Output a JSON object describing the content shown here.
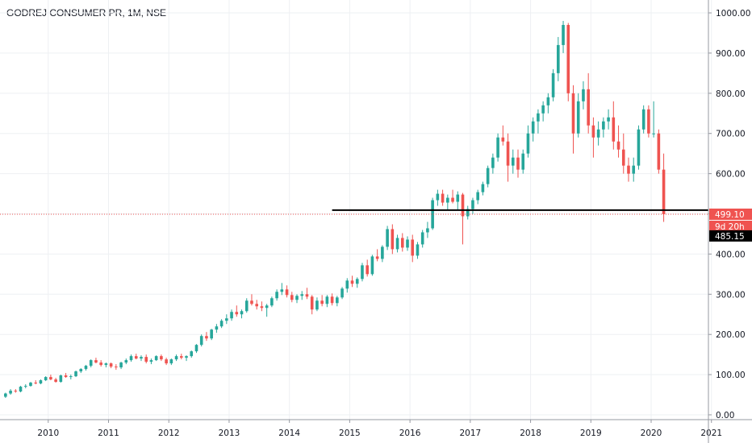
{
  "header": {
    "symbol_title": "GODREJ CONSUMER PR, 1M, NSE"
  },
  "colors": {
    "up": "#26a69a",
    "down": "#ef5350",
    "grid": "#eef0f3",
    "axis_text": "#131722",
    "last_price_bg": "#ef5350",
    "level_line": "#000000",
    "level_bg": "#000000"
  },
  "badges": {
    "last_price": "499.10",
    "countdown": "9d 20h",
    "level_price": "485.15"
  },
  "chart_data": {
    "type": "candlestick",
    "title": "GODREJ CONSUMER PR, 1M, NSE",
    "interval": "1M",
    "exchange": "NSE",
    "price_axis": {
      "range": [
        -10,
        1020
      ],
      "ticks": [
        0,
        100,
        200,
        300,
        400,
        500,
        600,
        700,
        800,
        900,
        1000
      ],
      "tick_labels": [
        "0.00",
        "100.00",
        "200.00",
        "300.00",
        "400.00",
        "500.00",
        "600.00",
        "700.00",
        "800.00",
        "900.00",
        "1000.00"
      ]
    },
    "time_axis": {
      "start_year": 2009.2,
      "end_year": 2020.95,
      "ticks": [
        "2010",
        "2011",
        "2012",
        "2013",
        "2014",
        "2015",
        "2016",
        "2017",
        "2018",
        "2019",
        "2020",
        "2021"
      ]
    },
    "grid": true,
    "horizontal_level": {
      "price": 485.15,
      "start": "2014-09"
    },
    "last_price": 499.1,
    "candles": [
      [
        "2009-04",
        45,
        55,
        42,
        53
      ],
      [
        "2009-05",
        53,
        64,
        50,
        60
      ],
      [
        "2009-06",
        60,
        64,
        55,
        58
      ],
      [
        "2009-07",
        58,
        72,
        56,
        70
      ],
      [
        "2009-08",
        70,
        76,
        66,
        72
      ],
      [
        "2009-09",
        72,
        82,
        70,
        80
      ],
      [
        "2009-10",
        80,
        86,
        76,
        78
      ],
      [
        "2009-11",
        78,
        88,
        76,
        86
      ],
      [
        "2009-12",
        86,
        96,
        84,
        94
      ],
      [
        "2010-01",
        94,
        100,
        86,
        88
      ],
      [
        "2010-02",
        88,
        92,
        80,
        82
      ],
      [
        "2010-03",
        82,
        100,
        80,
        98
      ],
      [
        "2010-04",
        98,
        104,
        92,
        94
      ],
      [
        "2010-05",
        94,
        100,
        88,
        96
      ],
      [
        "2010-06",
        96,
        110,
        94,
        108
      ],
      [
        "2010-07",
        108,
        116,
        104,
        114
      ],
      [
        "2010-08",
        114,
        124,
        110,
        122
      ],
      [
        "2010-09",
        122,
        138,
        118,
        136
      ],
      [
        "2010-10",
        136,
        142,
        128,
        130
      ],
      [
        "2010-11",
        130,
        136,
        120,
        124
      ],
      [
        "2010-12",
        124,
        130,
        118,
        128
      ],
      [
        "2011-01",
        128,
        130,
        116,
        120
      ],
      [
        "2011-02",
        120,
        126,
        112,
        118
      ],
      [
        "2011-03",
        118,
        132,
        114,
        130
      ],
      [
        "2011-04",
        130,
        140,
        126,
        136
      ],
      [
        "2011-05",
        136,
        150,
        132,
        146
      ],
      [
        "2011-06",
        146,
        152,
        138,
        140
      ],
      [
        "2011-07",
        140,
        148,
        134,
        144
      ],
      [
        "2011-08",
        144,
        150,
        128,
        132
      ],
      [
        "2011-09",
        132,
        140,
        126,
        136
      ],
      [
        "2011-10",
        136,
        148,
        134,
        146
      ],
      [
        "2011-11",
        146,
        150,
        134,
        138
      ],
      [
        "2011-12",
        138,
        142,
        124,
        128
      ],
      [
        "2012-01",
        128,
        140,
        124,
        138
      ],
      [
        "2012-02",
        138,
        150,
        134,
        146
      ],
      [
        "2012-03",
        146,
        152,
        138,
        142
      ],
      [
        "2012-04",
        142,
        148,
        134,
        146
      ],
      [
        "2012-05",
        146,
        160,
        142,
        158
      ],
      [
        "2012-06",
        158,
        176,
        154,
        174
      ],
      [
        "2012-07",
        174,
        200,
        170,
        196
      ],
      [
        "2012-08",
        196,
        206,
        184,
        190
      ],
      [
        "2012-09",
        190,
        214,
        186,
        212
      ],
      [
        "2012-10",
        212,
        226,
        204,
        220
      ],
      [
        "2012-11",
        220,
        238,
        216,
        234
      ],
      [
        "2012-12",
        234,
        250,
        226,
        240
      ],
      [
        "2013-01",
        240,
        262,
        234,
        256
      ],
      [
        "2013-02",
        256,
        272,
        244,
        250
      ],
      [
        "2013-03",
        250,
        262,
        240,
        258
      ],
      [
        "2013-04",
        258,
        290,
        254,
        284
      ],
      [
        "2013-05",
        284,
        300,
        272,
        276
      ],
      [
        "2013-06",
        276,
        286,
        262,
        270
      ],
      [
        "2013-07",
        270,
        282,
        258,
        266
      ],
      [
        "2013-08",
        266,
        276,
        244,
        272
      ],
      [
        "2013-09",
        272,
        294,
        268,
        290
      ],
      [
        "2013-10",
        290,
        312,
        284,
        306
      ],
      [
        "2013-11",
        306,
        328,
        298,
        312
      ],
      [
        "2013-12",
        312,
        322,
        292,
        298
      ],
      [
        "2014-01",
        298,
        306,
        280,
        286
      ],
      [
        "2014-02",
        286,
        300,
        278,
        296
      ],
      [
        "2014-03",
        296,
        308,
        286,
        300
      ],
      [
        "2014-04",
        300,
        316,
        288,
        294
      ],
      [
        "2014-05",
        294,
        298,
        250,
        262
      ],
      [
        "2014-06",
        262,
        292,
        258,
        284
      ],
      [
        "2014-07",
        284,
        298,
        270,
        276
      ],
      [
        "2014-08",
        276,
        298,
        268,
        294
      ],
      [
        "2014-09",
        294,
        302,
        272,
        278
      ],
      [
        "2014-10",
        278,
        296,
        270,
        292
      ],
      [
        "2014-11",
        292,
        318,
        288,
        314
      ],
      [
        "2014-12",
        314,
        340,
        304,
        334
      ],
      [
        "2015-01",
        334,
        346,
        318,
        326
      ],
      [
        "2015-02",
        326,
        342,
        316,
        338
      ],
      [
        "2015-03",
        338,
        378,
        332,
        372
      ],
      [
        "2015-04",
        372,
        386,
        344,
        350
      ],
      [
        "2015-05",
        350,
        398,
        346,
        394
      ],
      [
        "2015-06",
        394,
        412,
        382,
        388
      ],
      [
        "2015-07",
        388,
        422,
        380,
        418
      ],
      [
        "2015-08",
        418,
        470,
        410,
        462
      ],
      [
        "2015-09",
        462,
        474,
        400,
        412
      ],
      [
        "2015-10",
        412,
        448,
        404,
        440
      ],
      [
        "2015-11",
        440,
        452,
        406,
        416
      ],
      [
        "2015-12",
        416,
        444,
        408,
        436
      ],
      [
        "2016-01",
        436,
        448,
        380,
        396
      ],
      [
        "2016-02",
        396,
        430,
        388,
        424
      ],
      [
        "2016-03",
        424,
        460,
        416,
        454
      ],
      [
        "2016-04",
        454,
        480,
        440,
        464
      ],
      [
        "2016-05",
        464,
        540,
        460,
        534
      ],
      [
        "2016-06",
        534,
        560,
        520,
        550
      ],
      [
        "2016-07",
        550,
        560,
        520,
        528
      ],
      [
        "2016-08",
        528,
        548,
        508,
        540
      ],
      [
        "2016-09",
        540,
        560,
        526,
        530
      ],
      [
        "2016-10",
        530,
        556,
        510,
        548
      ],
      [
        "2016-11",
        548,
        552,
        424,
        494
      ],
      [
        "2016-12",
        494,
        520,
        486,
        512
      ],
      [
        "2017-01",
        512,
        540,
        500,
        534
      ],
      [
        "2017-02",
        534,
        560,
        524,
        554
      ],
      [
        "2017-03",
        554,
        580,
        546,
        574
      ],
      [
        "2017-04",
        574,
        620,
        566,
        614
      ],
      [
        "2017-05",
        614,
        650,
        600,
        640
      ],
      [
        "2017-06",
        640,
        700,
        630,
        690
      ],
      [
        "2017-07",
        690,
        720,
        670,
        680
      ],
      [
        "2017-08",
        680,
        700,
        580,
        620
      ],
      [
        "2017-09",
        620,
        660,
        600,
        640
      ],
      [
        "2017-10",
        640,
        660,
        590,
        610
      ],
      [
        "2017-11",
        610,
        660,
        600,
        650
      ],
      [
        "2017-12",
        650,
        720,
        640,
        700
      ],
      [
        "2018-01",
        700,
        740,
        680,
        730
      ],
      [
        "2018-02",
        730,
        760,
        700,
        750
      ],
      [
        "2018-03",
        750,
        780,
        730,
        770
      ],
      [
        "2018-04",
        770,
        800,
        750,
        790
      ],
      [
        "2018-05",
        790,
        860,
        780,
        850
      ],
      [
        "2018-06",
        850,
        940,
        830,
        920
      ],
      [
        "2018-07",
        920,
        980,
        900,
        970
      ],
      [
        "2018-08",
        970,
        975,
        780,
        800
      ],
      [
        "2018-09",
        800,
        820,
        650,
        700
      ],
      [
        "2018-10",
        700,
        800,
        690,
        780
      ],
      [
        "2018-11",
        780,
        830,
        760,
        810
      ],
      [
        "2018-12",
        810,
        850,
        700,
        720
      ],
      [
        "2019-01",
        720,
        740,
        640,
        690
      ],
      [
        "2019-02",
        690,
        730,
        670,
        710
      ],
      [
        "2019-03",
        710,
        740,
        690,
        730
      ],
      [
        "2019-04",
        730,
        760,
        710,
        740
      ],
      [
        "2019-05",
        740,
        780,
        660,
        680
      ],
      [
        "2019-06",
        680,
        720,
        640,
        660
      ],
      [
        "2019-07",
        660,
        700,
        600,
        620
      ],
      [
        "2019-08",
        620,
        640,
        580,
        600
      ],
      [
        "2019-09",
        600,
        640,
        580,
        620
      ],
      [
        "2019-10",
        620,
        720,
        610,
        710
      ],
      [
        "2019-11",
        710,
        770,
        700,
        760
      ],
      [
        "2019-12",
        760,
        770,
        690,
        700
      ],
      [
        "2020-01",
        700,
        780,
        690,
        700
      ],
      [
        "2020-02",
        700,
        710,
        600,
        610
      ],
      [
        "2020-03",
        610,
        650,
        480,
        499.1
      ]
    ]
  }
}
